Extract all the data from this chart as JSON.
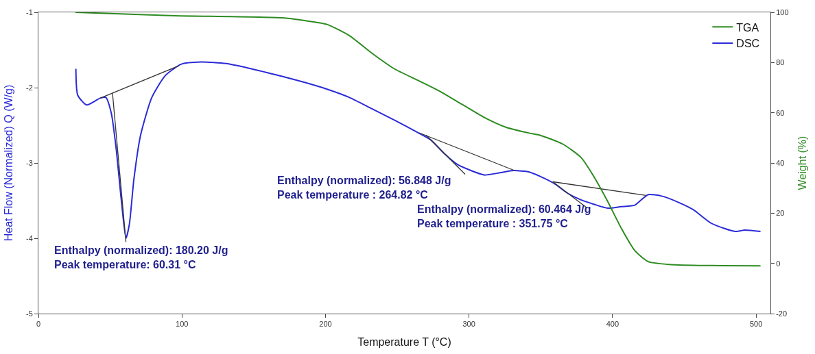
{
  "chart_data": {
    "type": "line",
    "xlabel": "Temperature T (°C)",
    "ylabel": "Heat Flow (Normalized) Q (W/g)",
    "y2label": "Weight (%)",
    "xlim": [
      0,
      510
    ],
    "xticks": [
      0,
      100,
      200,
      300,
      400,
      500
    ],
    "ylim": [
      -5,
      -1
    ],
    "yticks": [
      -5,
      -4,
      -3,
      -2,
      -1
    ],
    "y2lim": [
      -20,
      100
    ],
    "y2ticks": [
      -20,
      0,
      20,
      40,
      60,
      80,
      100
    ],
    "legend": "top right",
    "marker": "none",
    "line_style": "solid",
    "series": [
      {
        "name": "TGA",
        "color": "#2e8b22",
        "axis": "y2",
        "x": [
          25.8,
          91.5,
          169.8,
          185.4,
          201,
          216.7,
          232.4,
          248,
          263.7,
          279.3,
          295,
          310.7,
          326.3,
          341.9,
          349.8,
          365.4,
          378,
          387.3,
          396.7,
          406.1,
          415.5,
          424.9,
          443.7,
          475,
          503.1
        ],
        "values": [
          100,
          98.7,
          97.8,
          96.7,
          95.2,
          90.7,
          83.7,
          77.5,
          73.1,
          68.7,
          63.4,
          58.1,
          54.1,
          51.9,
          51,
          47.5,
          42.2,
          34.3,
          24.6,
          14,
          5.1,
          0.7,
          -0.6,
          -0.9,
          -1
        ]
      },
      {
        "name": "DSC",
        "color": "#2a2ad8",
        "x": [
          26.1,
          27.4,
          33.6,
          43,
          47,
          50.8,
          54,
          57.9,
          61,
          63.4,
          66.5,
          71.2,
          79,
          88.4,
          99.4,
          113.5,
          130.7,
          146.3,
          169.8,
          185.4,
          201.1,
          216.7,
          232.4,
          248,
          263.7,
          273.1,
          282.5,
          291.9,
          301.3,
          310.7,
          321.6,
          331,
          341.9,
          349.8,
          359.2,
          368.5,
          378,
          387.3,
          396.7,
          406.1,
          415.5,
          419.4,
          424.9,
          434.3,
          446.8,
          456.2,
          468.7,
          478.1,
          485.9,
          492.2,
          503.1
        ],
        "values": [
          -1.75,
          -2.1,
          -2.23,
          -2.14,
          -2.13,
          -2.34,
          -2.78,
          -3.52,
          -4,
          -3.81,
          -3.22,
          -2.63,
          -2.13,
          -1.84,
          -1.69,
          -1.66,
          -1.68,
          -1.74,
          -1.85,
          -1.93,
          -2.02,
          -2.13,
          -2.28,
          -2.43,
          -2.59,
          -2.69,
          -2.87,
          -3.02,
          -3.1,
          -3.16,
          -3.13,
          -3.1,
          -3.12,
          -3.18,
          -3.27,
          -3.4,
          -3.49,
          -3.55,
          -3.6,
          -3.58,
          -3.56,
          -3.5,
          -3.42,
          -3.44,
          -3.53,
          -3.62,
          -3.8,
          -3.87,
          -3.91,
          -3.89,
          -3.91
        ]
      },
      {
        "color": "#333333",
        "x": [
          43,
          97.8
        ],
        "values": [
          -2.14,
          -1.71
        ]
      },
      {
        "color": "#333333",
        "x": [
          51.6,
          61
        ],
        "values": [
          -2.07,
          -4.05
        ]
      },
      {
        "color": "#333333",
        "x": [
          265.3,
          331.7
        ],
        "values": [
          -2.6,
          -3.1
        ]
      },
      {
        "color": "#333333",
        "x": [
          270,
          297.3
        ],
        "values": [
          -2.63,
          -3.15
        ]
      },
      {
        "color": "#333333",
        "x": [
          358.4,
          423.3
        ],
        "values": [
          -3.25,
          -3.43
        ]
      },
      {
        "color": "#333333",
        "x": [
          358.4,
          381.8
        ],
        "values": [
          -3.25,
          -3.59
        ]
      }
    ],
    "annotations": [
      {
        "text": "Enthalpy (normalized): 180.20 J/g\nPeak temperature: 60.31 °C",
        "x": 60.31,
        "y": -4.0
      },
      {
        "text": "Enthalpy (normalized): 56.848 J/g\nPeak temperature : 264.82 °C",
        "x": 301.3,
        "y": -3.1
      },
      {
        "text": "Enthalpy (normalized): 60.464 J/g\nPeak temperature : 351.75 °C",
        "x": 385,
        "y": -3.56
      }
    ]
  }
}
